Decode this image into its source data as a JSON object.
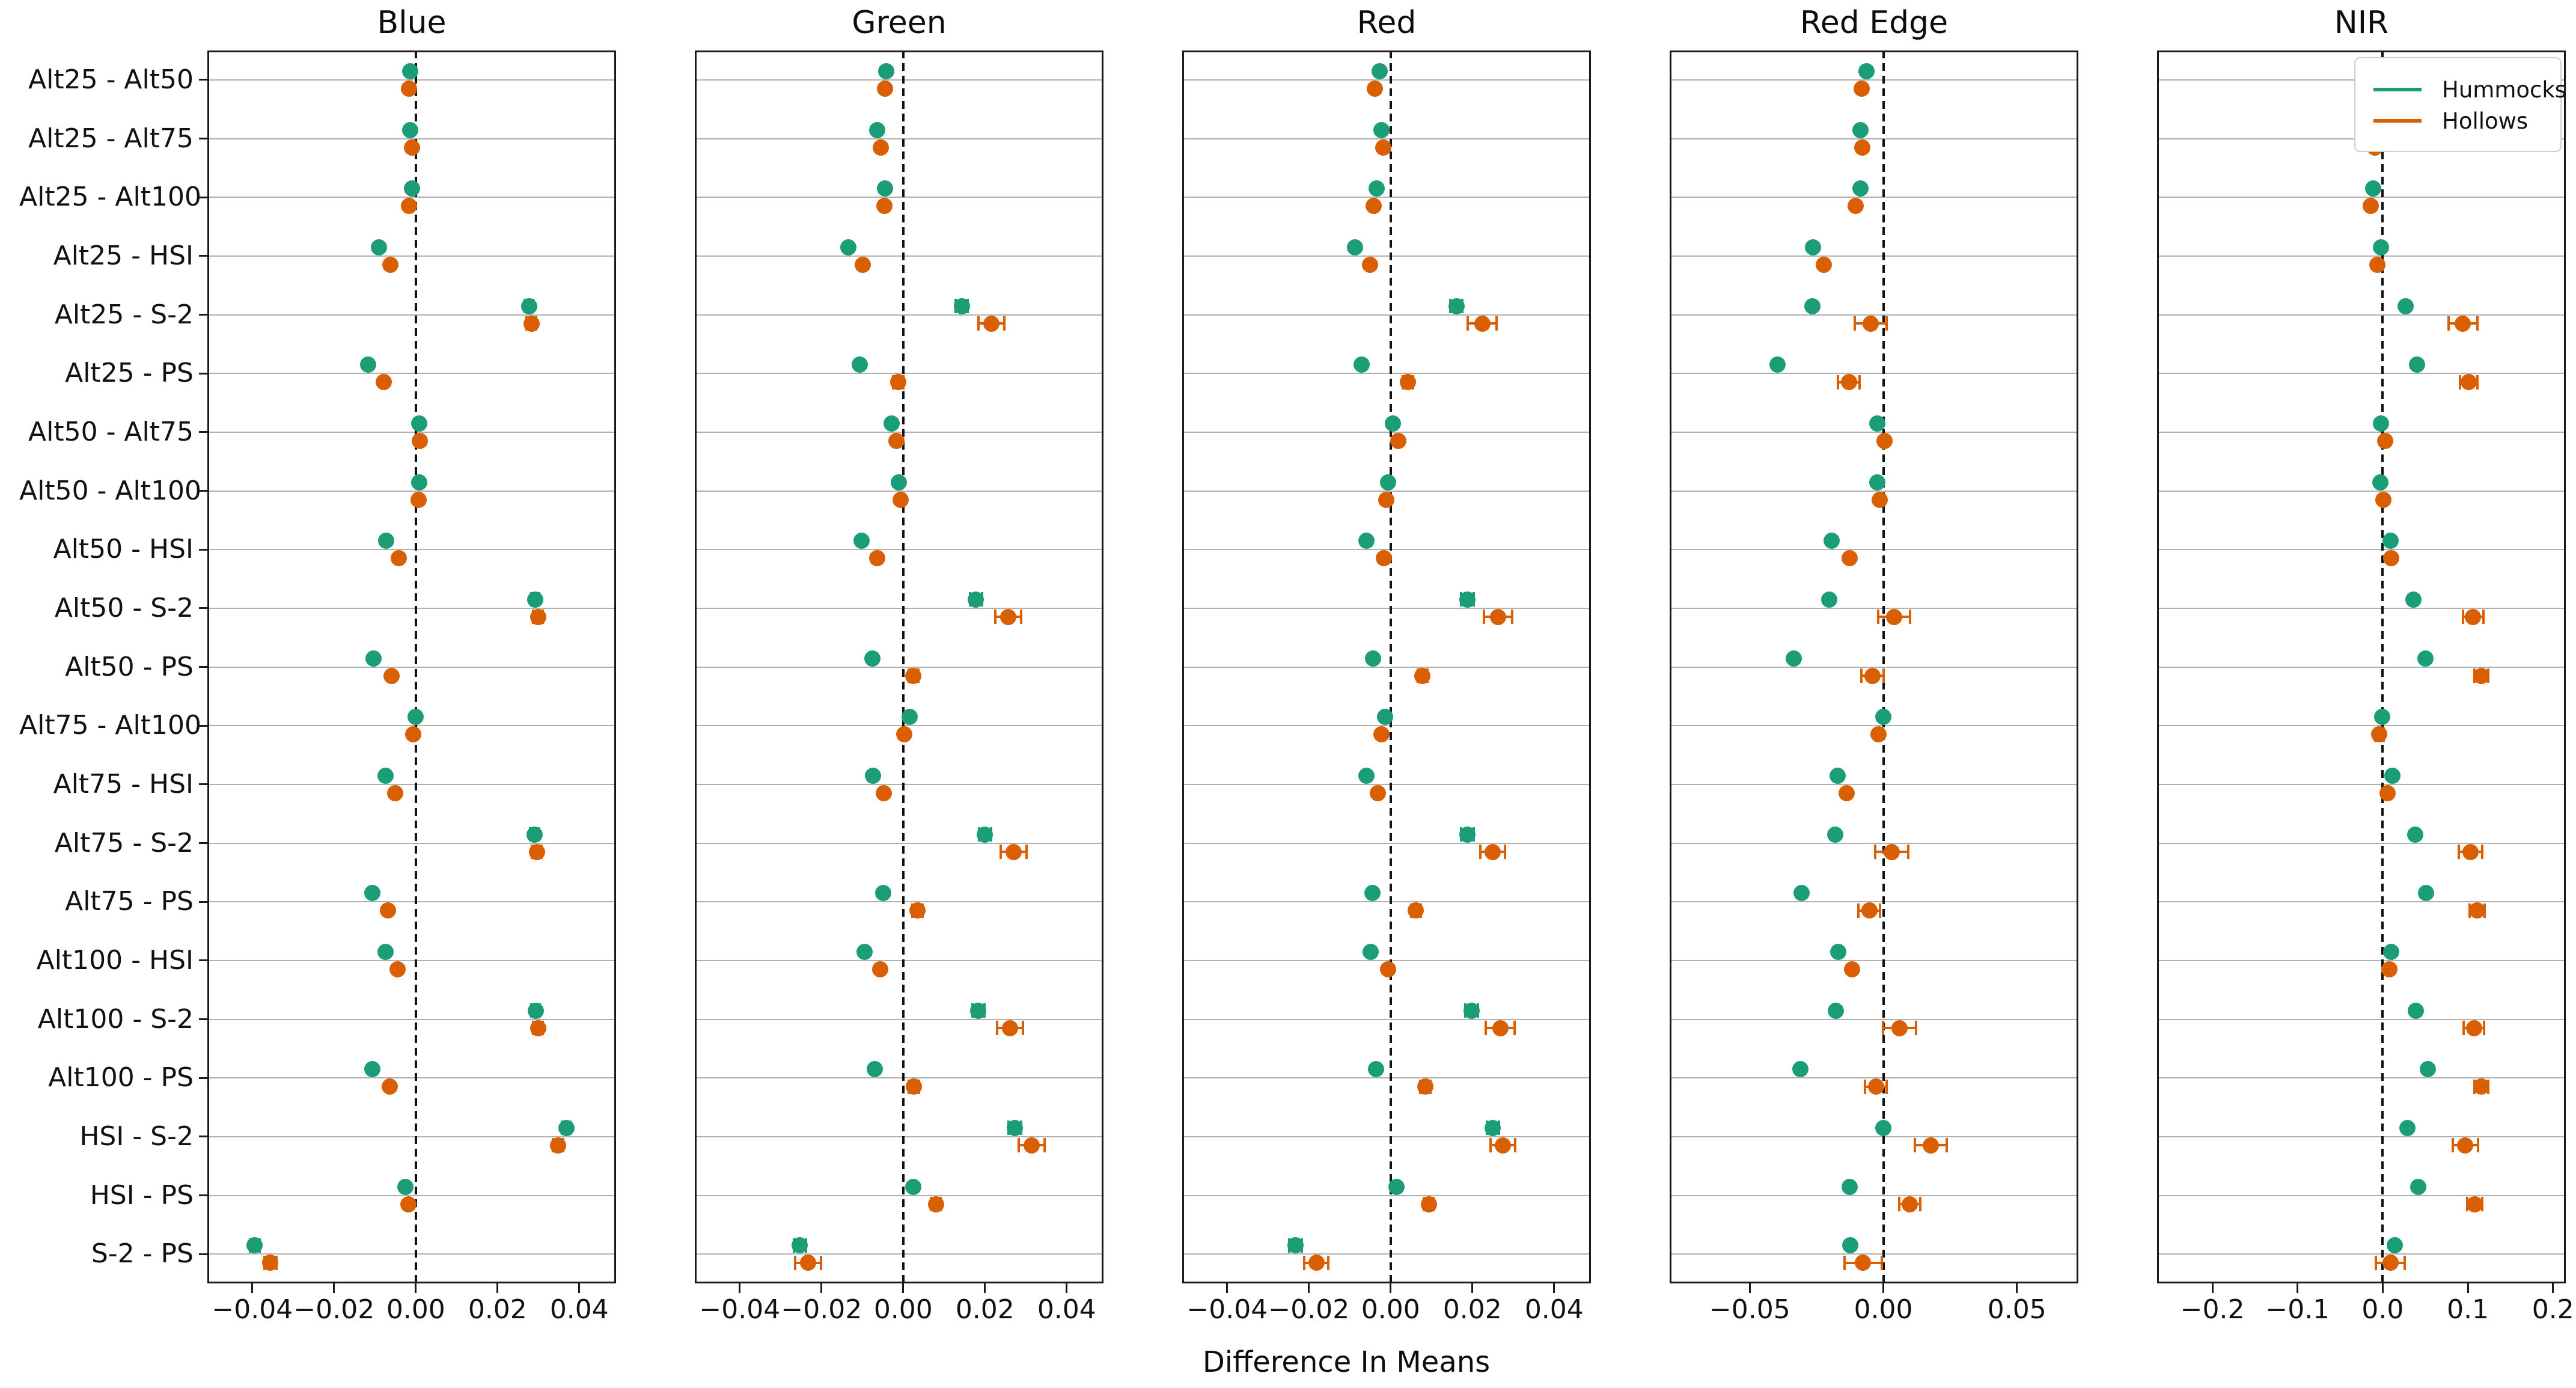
{
  "chart_data": {
    "type": "scatter",
    "xlabel": "Difference In Means",
    "grid": "horizontal",
    "dashed_zero_line": true,
    "legend_position": "top-right-of-NIR-panel",
    "categories": [
      "Alt25 - Alt50",
      "Alt25 - Alt75",
      "Alt25 - Alt100",
      "Alt25 - HSI",
      "Alt25 - S-2",
      "Alt25 - PS",
      "Alt50 - Alt75",
      "Alt50 - Alt100",
      "Alt50 - HSI",
      "Alt50 - S-2",
      "Alt50 - PS",
      "Alt75 - Alt100",
      "Alt75 - HSI",
      "Alt75 - S-2",
      "Alt75 - PS",
      "Alt100 - HSI",
      "Alt100 - S-2",
      "Alt100 - PS",
      "HSI - S-2",
      "HSI - PS",
      "S-2 - PS"
    ],
    "series": [
      {
        "name": "Hummocks",
        "color": "#1b9e77"
      },
      {
        "name": "Hollows",
        "color": "#d95f02"
      }
    ],
    "row_format": "[hummocks_value, hummocks_err, hollows_value, hollows_err]",
    "panels": [
      {
        "title": "Blue",
        "xlim": [
          -0.051,
          0.049
        ],
        "xticks": [
          -0.04,
          -0.02,
          0.0,
          0.02,
          0.04
        ],
        "xtick_labels": [
          "−0.04",
          "−0.02",
          "0.00",
          "0.02",
          "0.04"
        ],
        "rows": [
          [
            -0.0013,
            0,
            -0.0017,
            0
          ],
          [
            -0.0013,
            0,
            -0.001,
            0
          ],
          [
            -0.001,
            0,
            -0.0016,
            0
          ],
          [
            -0.009,
            0,
            -0.0062,
            0
          ],
          [
            0.0277,
            0.001,
            0.0283,
            0.0012
          ],
          [
            -0.0116,
            0,
            -0.0078,
            0
          ],
          [
            0.0008,
            0,
            0.001,
            0
          ],
          [
            0.0008,
            0,
            0.0007,
            0
          ],
          [
            -0.0073,
            0,
            -0.0042,
            0
          ],
          [
            0.0292,
            0.001,
            0.0299,
            0.0012
          ],
          [
            -0.0104,
            0,
            -0.0059,
            0
          ],
          [
            0.0,
            0,
            -0.0006,
            0
          ],
          [
            -0.0074,
            0,
            -0.0051,
            0
          ],
          [
            0.029,
            0.001,
            0.0296,
            0.0012
          ],
          [
            -0.0106,
            0,
            -0.0068,
            0
          ],
          [
            -0.0074,
            0,
            -0.0044,
            0
          ],
          [
            0.0293,
            0.001,
            0.0299,
            0.0012
          ],
          [
            -0.0106,
            0,
            -0.0063,
            0
          ],
          [
            0.0368,
            0.001,
            0.0348,
            0.0012
          ],
          [
            -0.0026,
            0,
            -0.0018,
            0
          ],
          [
            -0.0394,
            0.0012,
            -0.0356,
            0.0015
          ]
        ]
      },
      {
        "title": "Green",
        "xlim": [
          -0.051,
          0.049
        ],
        "xticks": [
          -0.04,
          -0.02,
          0.0,
          0.02,
          0.04
        ],
        "xtick_labels": [
          "−0.04",
          "−0.02",
          "0.00",
          "0.02",
          "0.04"
        ],
        "rows": [
          [
            -0.0041,
            0,
            -0.0045,
            0
          ],
          [
            -0.0063,
            0,
            -0.0055,
            0
          ],
          [
            -0.0045,
            0,
            -0.0046,
            0
          ],
          [
            -0.0134,
            0,
            -0.0099,
            0
          ],
          [
            0.0143,
            0.0015,
            0.0216,
            0.0032
          ],
          [
            -0.0107,
            0,
            -0.0012,
            0.0012
          ],
          [
            -0.0028,
            0,
            -0.0017,
            0
          ],
          [
            -0.0011,
            0,
            -0.0006,
            0
          ],
          [
            -0.0102,
            0,
            -0.0063,
            0
          ],
          [
            0.0178,
            0.0015,
            0.0257,
            0.0032
          ],
          [
            -0.0075,
            0,
            0.0025,
            0.0012
          ],
          [
            0.0016,
            0,
            0.0002,
            0
          ],
          [
            -0.0074,
            0,
            -0.0048,
            0
          ],
          [
            0.02,
            0.0015,
            0.027,
            0.0032
          ],
          [
            -0.0049,
            0,
            0.0035,
            0.0012
          ],
          [
            -0.0094,
            0,
            -0.0056,
            0
          ],
          [
            0.0184,
            0.0015,
            0.0261,
            0.0032
          ],
          [
            -0.0069,
            0,
            0.0026,
            0.0012
          ],
          [
            0.0273,
            0.0015,
            0.0314,
            0.0032
          ],
          [
            0.0025,
            0,
            0.008,
            0.0012
          ],
          [
            -0.0253,
            0.0015,
            -0.0233,
            0.0032
          ]
        ]
      },
      {
        "title": "Red",
        "xlim": [
          -0.051,
          0.049
        ],
        "xticks": [
          -0.04,
          -0.02,
          0.0,
          0.02,
          0.04
        ],
        "xtick_labels": [
          "−0.04",
          "−0.02",
          "0.00",
          "0.02",
          "0.04"
        ],
        "rows": [
          [
            -0.0027,
            0,
            -0.0039,
            0
          ],
          [
            -0.0023,
            0,
            -0.0018,
            0
          ],
          [
            -0.0035,
            0,
            -0.0041,
            0
          ],
          [
            -0.0087,
            0,
            -0.0051,
            0
          ],
          [
            0.0161,
            0.0015,
            0.0224,
            0.0035
          ],
          [
            -0.0071,
            0,
            0.0042,
            0.0012
          ],
          [
            0.0006,
            0,
            0.0018,
            0
          ],
          [
            -0.0007,
            0,
            -0.0011,
            0
          ],
          [
            -0.0059,
            0,
            -0.0016,
            0
          ],
          [
            0.0188,
            0.0015,
            0.0263,
            0.0035
          ],
          [
            -0.0043,
            0,
            0.0078,
            0.0012
          ],
          [
            -0.0013,
            0,
            -0.0023,
            0
          ],
          [
            -0.0059,
            0,
            -0.0032,
            0
          ],
          [
            0.0188,
            0.0015,
            0.0249,
            0.003
          ],
          [
            -0.0045,
            0,
            0.0062,
            0.0012
          ],
          [
            -0.0049,
            0,
            -0.0007,
            0
          ],
          [
            0.0198,
            0.0015,
            0.0268,
            0.0035
          ],
          [
            -0.0036,
            0,
            0.0085,
            0.0012
          ],
          [
            0.025,
            0.0015,
            0.0275,
            0.003
          ],
          [
            0.0014,
            0,
            0.0093,
            0.0012
          ],
          [
            -0.0233,
            0.0015,
            -0.0182,
            0.003
          ]
        ]
      },
      {
        "title": "Red Edge",
        "xlim": [
          -0.08,
          0.073
        ],
        "xticks": [
          -0.05,
          0.0,
          0.05
        ],
        "xtick_labels": [
          "−0.05",
          "0.00",
          "0.05"
        ],
        "rows": [
          [
            -0.0064,
            0,
            -0.0082,
            0
          ],
          [
            -0.0085,
            0,
            -0.0079,
            0
          ],
          [
            -0.0086,
            0,
            -0.0104,
            0
          ],
          [
            -0.0264,
            0,
            -0.0222,
            0
          ],
          [
            -0.0266,
            0,
            -0.0048,
            0.006
          ],
          [
            -0.0396,
            0,
            -0.0129,
            0.004
          ],
          [
            -0.0022,
            0,
            0.0004,
            0
          ],
          [
            -0.0022,
            0,
            -0.0013,
            0
          ],
          [
            -0.0194,
            0,
            -0.0127,
            0
          ],
          [
            -0.0203,
            0,
            0.0041,
            0.006
          ],
          [
            -0.0336,
            0,
            -0.0041,
            0.0042
          ],
          [
            0.0,
            0,
            -0.0019,
            0
          ],
          [
            -0.0171,
            0,
            -0.0137,
            0
          ],
          [
            -0.018,
            0,
            0.0032,
            0.0062
          ],
          [
            -0.0307,
            0,
            -0.0053,
            0.004
          ],
          [
            -0.0169,
            0,
            -0.0117,
            0
          ],
          [
            -0.0177,
            0,
            0.0061,
            0.0062
          ],
          [
            -0.0311,
            0,
            -0.0028,
            0.004
          ],
          [
            0.0,
            0,
            0.0177,
            0.006
          ],
          [
            -0.0127,
            0,
            0.0099,
            0.004
          ],
          [
            -0.0123,
            0,
            -0.0076,
            0.007
          ]
        ]
      },
      {
        "title": "NIR",
        "xlim": [
          -0.265,
          0.215
        ],
        "xticks": [
          -0.2,
          -0.1,
          0.0,
          0.1,
          0.2
        ],
        "xtick_labels": [
          "−0.2",
          "−0.1",
          "0.0",
          "0.1",
          "0.2"
        ],
        "rows": [
          [
            -0.009,
            0,
            -0.013,
            0
          ],
          [
            -0.01,
            0,
            -0.009,
            0
          ],
          [
            -0.011,
            0,
            -0.014,
            0
          ],
          [
            -0.002,
            0,
            -0.006,
            0
          ],
          [
            0.027,
            0,
            0.094,
            0.017
          ],
          [
            0.04,
            0,
            0.101,
            0.01
          ],
          [
            -0.002,
            0,
            0.003,
            0
          ],
          [
            -0.003,
            0,
            0.001,
            0
          ],
          [
            0.009,
            0,
            0.01,
            0
          ],
          [
            0.036,
            0,
            0.106,
            0.012
          ],
          [
            0.05,
            0,
            0.116,
            0.008
          ],
          [
            -0.001,
            0,
            -0.004,
            0.005
          ],
          [
            0.011,
            0,
            0.006,
            0
          ],
          [
            0.038,
            0,
            0.103,
            0.014
          ],
          [
            0.051,
            0,
            0.111,
            0.009
          ],
          [
            0.01,
            0,
            0.008,
            0
          ],
          [
            0.039,
            0,
            0.107,
            0.012
          ],
          [
            0.053,
            0,
            0.116,
            0.008
          ],
          [
            0.029,
            0,
            0.097,
            0.015
          ],
          [
            0.042,
            0,
            0.108,
            0.009
          ],
          [
            0.014,
            0,
            0.009,
            0.017
          ]
        ]
      }
    ]
  }
}
